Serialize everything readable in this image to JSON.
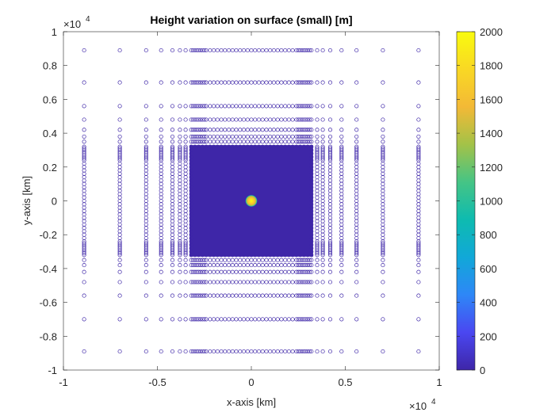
{
  "chart_data": {
    "type": "scatter",
    "title": "Height variation on surface (small) [m]",
    "xlabel": "x-axis [km]",
    "ylabel": "y-axis [km]",
    "xlim": [
      -1,
      1
    ],
    "ylim": [
      -1,
      1
    ],
    "x_exponent_base": "×10",
    "x_exponent_power": "4",
    "y_exponent_base": "×10",
    "y_exponent_power": "4",
    "xticks": [
      "-1",
      "-0.5",
      "0",
      "0.5",
      "1"
    ],
    "yticks": [
      "1",
      "0.8",
      "0.6",
      "0.4",
      "0.2",
      "0",
      "-0.2",
      "-0.4",
      "-0.6",
      "-0.8",
      "-1"
    ],
    "grid": false,
    "marker": "open circle",
    "grid_positions": [
      -0.89,
      -0.7,
      -0.56,
      -0.48,
      -0.42,
      -0.38,
      -0.35,
      -0.32,
      -0.31,
      -0.3,
      -0.29,
      -0.28,
      -0.27,
      -0.26,
      -0.25,
      -0.24,
      0.24,
      0.25,
      0.26,
      0.27,
      0.28,
      0.29,
      0.3,
      0.31,
      0.32,
      0.35,
      0.38,
      0.42,
      0.48,
      0.56,
      0.7,
      0.89
    ],
    "dense_region": [
      -0.32,
      0.32
    ],
    "peak": {
      "x": 0,
      "y": 0,
      "height": 2000,
      "radius": 0.022
    },
    "base_height": 0,
    "colorbar": {
      "label_values": [
        2000,
        1800,
        1600,
        1400,
        1200,
        1000,
        800,
        600,
        400,
        200,
        0
      ],
      "range": [
        0,
        2000
      ],
      "colormap": "parula",
      "colors": [
        "#3e26a8",
        "#4a47f1",
        "#2e87f7",
        "#11a8d8",
        "#0ebbb0",
        "#45c485",
        "#a3c248",
        "#f3b936",
        "#f9d824",
        "#f9fb0e"
      ]
    },
    "colors": {
      "low": "#3e26a8",
      "high": "#f9fb0e"
    }
  }
}
